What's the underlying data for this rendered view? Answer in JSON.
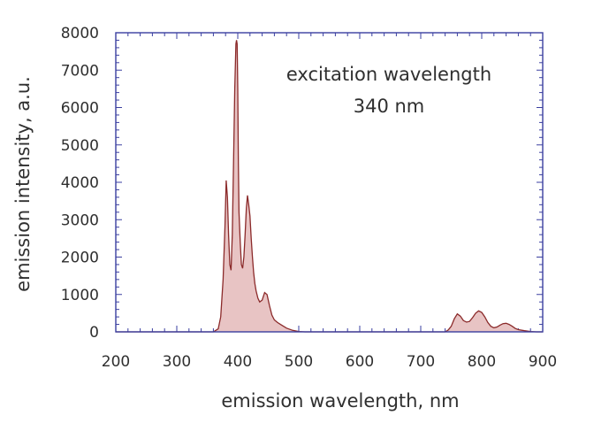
{
  "chart_data": {
    "type": "line",
    "xlabel": "emission wavelength, nm",
    "ylabel": "emission intensity, a.u.",
    "xlim": [
      200,
      900
    ],
    "ylim": [
      0,
      8000
    ],
    "x_ticks": [
      200,
      300,
      400,
      500,
      600,
      700,
      800,
      900
    ],
    "y_ticks": [
      0,
      1000,
      2000,
      3000,
      4000,
      5000,
      6000,
      7000,
      8000
    ],
    "annotation": {
      "line1": "excitation wavelength",
      "line2": "340 nm"
    },
    "grid": false,
    "legend": "none",
    "colors": {
      "line": "#8b2a2a",
      "fill": "#e8c4c4",
      "axes": "#3a3fa0"
    },
    "series": [
      {
        "x": [
          200,
          360,
          368,
          372,
          376,
          379,
          381,
          383,
          385,
          387,
          389,
          391,
          393,
          395,
          397,
          398,
          399,
          400,
          401,
          402,
          404,
          406,
          408,
          410,
          412,
          414,
          416,
          418,
          420,
          422,
          424,
          426,
          428,
          430,
          433,
          436,
          440,
          444,
          448,
          452,
          456,
          460,
          465,
          470,
          480,
          490,
          500,
          510,
          520,
          600,
          700,
          740,
          745,
          750,
          755,
          760,
          765,
          770,
          775,
          780,
          785,
          790,
          795,
          800,
          805,
          810,
          815,
          820,
          825,
          830,
          835,
          840,
          845,
          850,
          855,
          860,
          870,
          880,
          890,
          900
        ],
        "y": [
          0,
          0,
          80,
          400,
          1400,
          2800,
          4050,
          3600,
          2600,
          1800,
          1650,
          2600,
          4500,
          6500,
          7700,
          7800,
          7700,
          6500,
          4500,
          3200,
          2400,
          1800,
          1700,
          2000,
          2600,
          3300,
          3650,
          3400,
          3100,
          2500,
          2000,
          1600,
          1300,
          1100,
          900,
          800,
          850,
          1050,
          1000,
          700,
          450,
          320,
          250,
          200,
          100,
          40,
          10,
          0,
          0,
          0,
          0,
          0,
          50,
          150,
          350,
          480,
          420,
          300,
          260,
          280,
          380,
          500,
          560,
          520,
          400,
          250,
          150,
          110,
          130,
          180,
          220,
          230,
          200,
          150,
          90,
          60,
          30,
          10,
          0,
          0
        ]
      }
    ]
  }
}
